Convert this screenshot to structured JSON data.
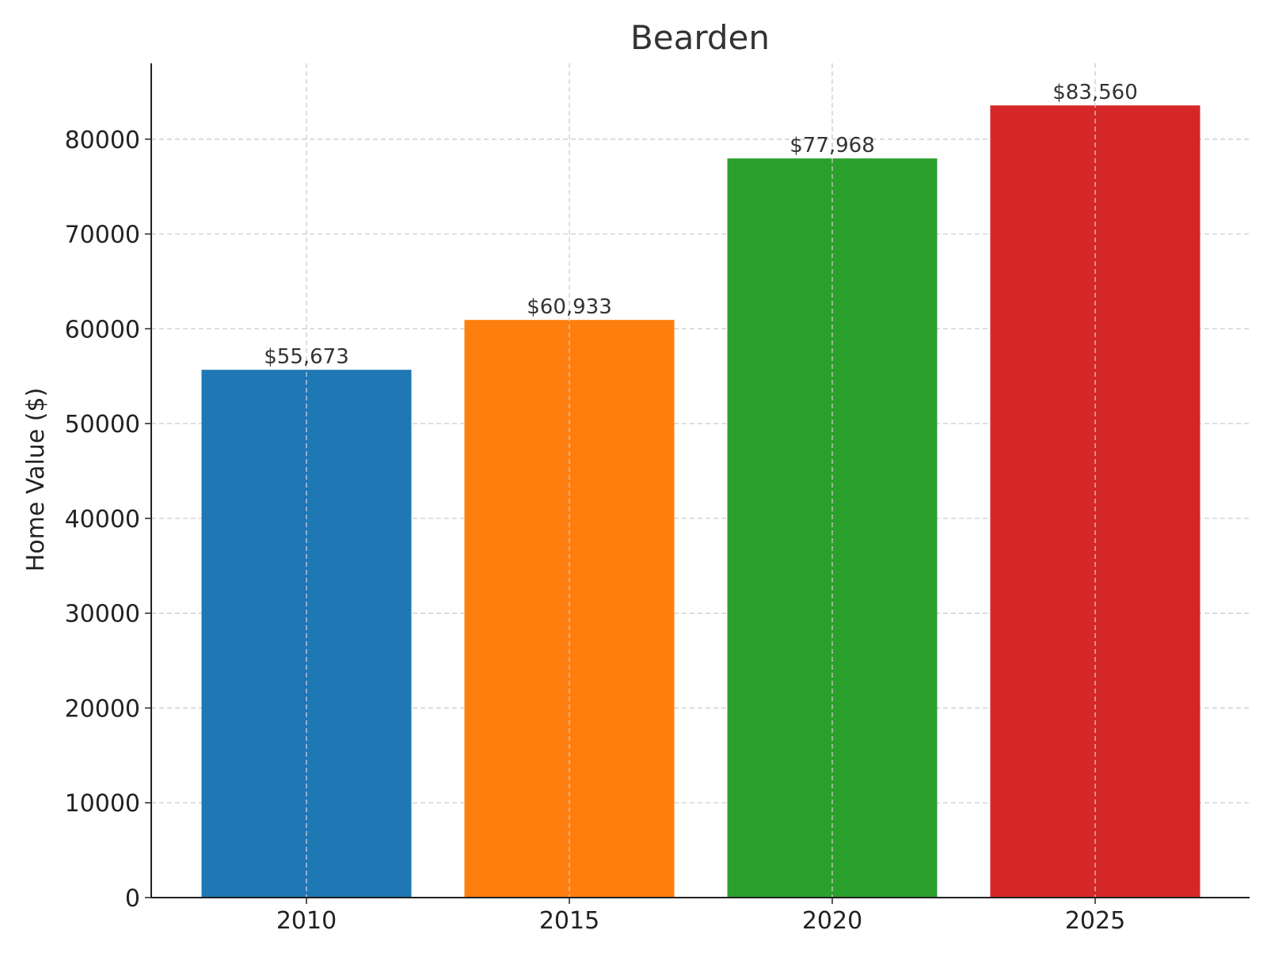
{
  "chart_data": {
    "type": "bar",
    "title": "Bearden",
    "xlabel": "",
    "ylabel": "Home Value ($)",
    "categories": [
      "2010",
      "2015",
      "2020",
      "2025"
    ],
    "values": [
      55673,
      60933,
      77968,
      83560
    ],
    "value_labels": [
      "$55,673",
      "$60,933",
      "$77,968",
      "$83,560"
    ],
    "bar_colors": [
      "#1f77b4",
      "#ff7f0e",
      "#2ca02c",
      "#d62728"
    ],
    "ylim": [
      0,
      88000
    ],
    "yticks": [
      0,
      10000,
      20000,
      30000,
      40000,
      50000,
      60000,
      70000,
      80000
    ],
    "grid": true,
    "legend": "none"
  }
}
